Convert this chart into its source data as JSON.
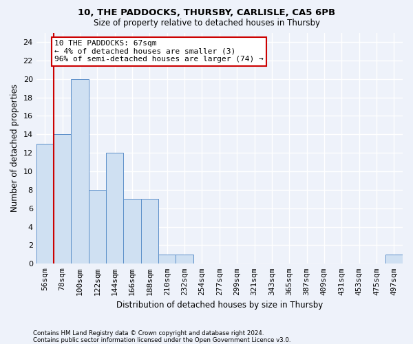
{
  "title1": "10, THE PADDOCKS, THURSBY, CARLISLE, CA5 6PB",
  "title2": "Size of property relative to detached houses in Thursby",
  "xlabel": "Distribution of detached houses by size in Thursby",
  "ylabel": "Number of detached properties",
  "categories": [
    "56sqm",
    "78sqm",
    "100sqm",
    "122sqm",
    "144sqm",
    "166sqm",
    "188sqm",
    "210sqm",
    "232sqm",
    "254sqm",
    "277sqm",
    "299sqm",
    "321sqm",
    "343sqm",
    "365sqm",
    "387sqm",
    "409sqm",
    "431sqm",
    "453sqm",
    "475sqm",
    "497sqm"
  ],
  "values": [
    13,
    14,
    20,
    8,
    12,
    7,
    7,
    1,
    1,
    0,
    0,
    0,
    0,
    0,
    0,
    0,
    0,
    0,
    0,
    0,
    1
  ],
  "bar_color": "#cfe0f2",
  "bar_edge_color": "#5b8fc9",
  "annotation_text": "10 THE PADDOCKS: 67sqm\n← 4% of detached houses are smaller (3)\n96% of semi-detached houses are larger (74) →",
  "annotation_box_color": "#ffffff",
  "annotation_box_edge_color": "#cc0000",
  "ylim": [
    0,
    25
  ],
  "yticks": [
    0,
    2,
    4,
    6,
    8,
    10,
    12,
    14,
    16,
    18,
    20,
    22,
    24
  ],
  "footer1": "Contains HM Land Registry data © Crown copyright and database right 2024.",
  "footer2": "Contains public sector information licensed under the Open Government Licence v3.0.",
  "bg_color": "#eef2fa",
  "grid_color": "#ffffff",
  "property_line_color": "#cc0000",
  "property_line_x": 0.5
}
